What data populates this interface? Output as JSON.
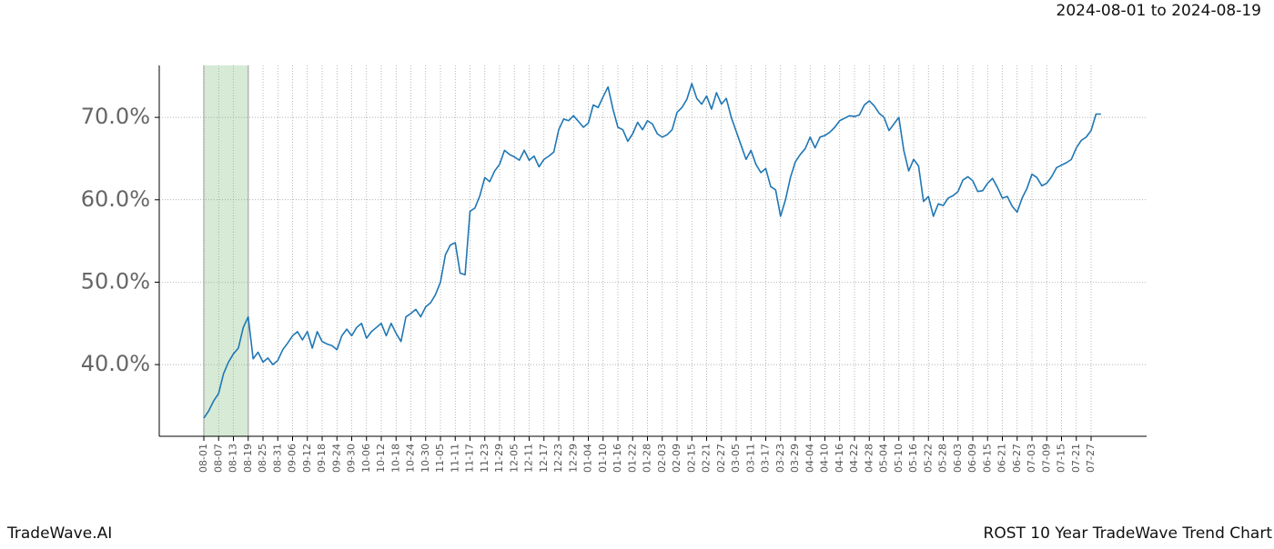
{
  "chart_data": {
    "type": "line",
    "title": "ROST 10 Year TradeWave Trend Chart",
    "subtitle": "2024-08-01 to 2024-08-19",
    "source": "TradeWave.AI",
    "color": "#1f77b4",
    "highlight": {
      "from": "08-01",
      "to": "08-19",
      "color": "#d6ead6"
    },
    "grid": true,
    "ylim": [
      31.3,
      76.3
    ],
    "yticks": [
      {
        "value": 40,
        "label": "40.0%"
      },
      {
        "value": 50,
        "label": "50.0%"
      },
      {
        "value": 60,
        "label": "60.0%"
      },
      {
        "value": 70,
        "label": "70.0%"
      }
    ],
    "categories": [
      "08-01",
      null,
      null,
      "08-07",
      null,
      null,
      "08-13",
      null,
      null,
      "08-19",
      null,
      null,
      "08-25",
      null,
      null,
      "08-31",
      null,
      null,
      "09-06",
      null,
      null,
      "09-12",
      null,
      null,
      "09-18",
      null,
      null,
      "09-24",
      null,
      null,
      "09-30",
      null,
      null,
      "10-06",
      null,
      null,
      "10-12",
      null,
      null,
      "10-18",
      null,
      null,
      "10-24",
      null,
      null,
      "10-30",
      null,
      null,
      "11-05",
      null,
      null,
      "11-11",
      null,
      null,
      "11-17",
      null,
      null,
      "11-23",
      null,
      null,
      "11-29",
      null,
      null,
      "12-05",
      null,
      null,
      "12-11",
      null,
      null,
      "12-17",
      null,
      null,
      "12-23",
      null,
      null,
      "12-29",
      null,
      null,
      "01-04",
      null,
      null,
      "01-10",
      null,
      null,
      "01-16",
      null,
      null,
      "01-22",
      null,
      null,
      "01-28",
      null,
      null,
      "02-03",
      null,
      null,
      "02-09",
      null,
      null,
      "02-15",
      null,
      null,
      "02-21",
      null,
      null,
      "02-27",
      null,
      null,
      "03-05",
      null,
      null,
      "03-11",
      null,
      null,
      "03-17",
      null,
      null,
      "03-23",
      null,
      null,
      "03-29",
      null,
      null,
      "04-04",
      null,
      null,
      "04-10",
      null,
      null,
      "04-16",
      null,
      null,
      "04-22",
      null,
      null,
      "04-28",
      null,
      null,
      "05-04",
      null,
      null,
      "05-10",
      null,
      null,
      "05-16",
      null,
      null,
      "05-22",
      null,
      null,
      "05-28",
      null,
      null,
      "06-03",
      null,
      null,
      "06-09",
      null,
      null,
      "06-15",
      null,
      null,
      "06-21",
      null,
      null,
      "06-27",
      null,
      null,
      "07-03",
      null,
      null,
      "07-09",
      null,
      null,
      "07-15",
      null,
      null,
      "07-21",
      null,
      null,
      "07-27",
      null,
      null
    ],
    "values": [
      33.5,
      34.4,
      35.6,
      36.5,
      38.9,
      40.3,
      41.3,
      42,
      44.5,
      45.8,
      40.7,
      41.5,
      40.3,
      40.8,
      40,
      40.5,
      41.8,
      42.6,
      43.5,
      44,
      43,
      44,
      42,
      44,
      42.8,
      42.5,
      42.3,
      41.8,
      43.5,
      44.3,
      43.5,
      44.5,
      45,
      43.2,
      44,
      44.5,
      45,
      43.5,
      45,
      43.8,
      42.8,
      45.8,
      46.2,
      46.7,
      45.8,
      47,
      47.5,
      48.5,
      50,
      53.3,
      54.5,
      54.8,
      51.1,
      50.9,
      58.6,
      59,
      60.5,
      62.7,
      62.2,
      63.5,
      64.3,
      66,
      65.5,
      65.2,
      64.8,
      66,
      64.8,
      65.3,
      64,
      64.9,
      65.3,
      65.8,
      68.5,
      69.8,
      69.6,
      70.2,
      69.5,
      68.8,
      69.3,
      71.5,
      71.2,
      72.5,
      73.7,
      71,
      68.8,
      68.5,
      67.1,
      68,
      69.4,
      68.5,
      69.6,
      69.2,
      68,
      67.6,
      67.9,
      68.5,
      70.6,
      71.2,
      72.2,
      74.1,
      72.3,
      71.6,
      72.6,
      71,
      73,
      71.6,
      72.3,
      70,
      68.3,
      66.6,
      64.9,
      66,
      64.3,
      63.3,
      63.8,
      61.6,
      61.2,
      58,
      60,
      62.7,
      64.6,
      65.5,
      66.2,
      67.6,
      66.3,
      67.6,
      67.8,
      68.2,
      68.8,
      69.6,
      69.9,
      70.2,
      70.1,
      70.3,
      71.5,
      72,
      71.4,
      70.5,
      70,
      68.4,
      69.2,
      70,
      66,
      63.5,
      64.9,
      64.1,
      59.8,
      60.4,
      58,
      59.5,
      59.3,
      60.2,
      60.5,
      61,
      62.4,
      62.8,
      62.3,
      61,
      61.1,
      62,
      62.6,
      61.5,
      60.2,
      60.4,
      59.2,
      58.5,
      60.2,
      61.4,
      63.1,
      62.7,
      61.7,
      62,
      62.8,
      63.9,
      64.2,
      64.5,
      64.9,
      66.3,
      67.2,
      67.6,
      68.4,
      70.4,
      70.4
    ]
  }
}
